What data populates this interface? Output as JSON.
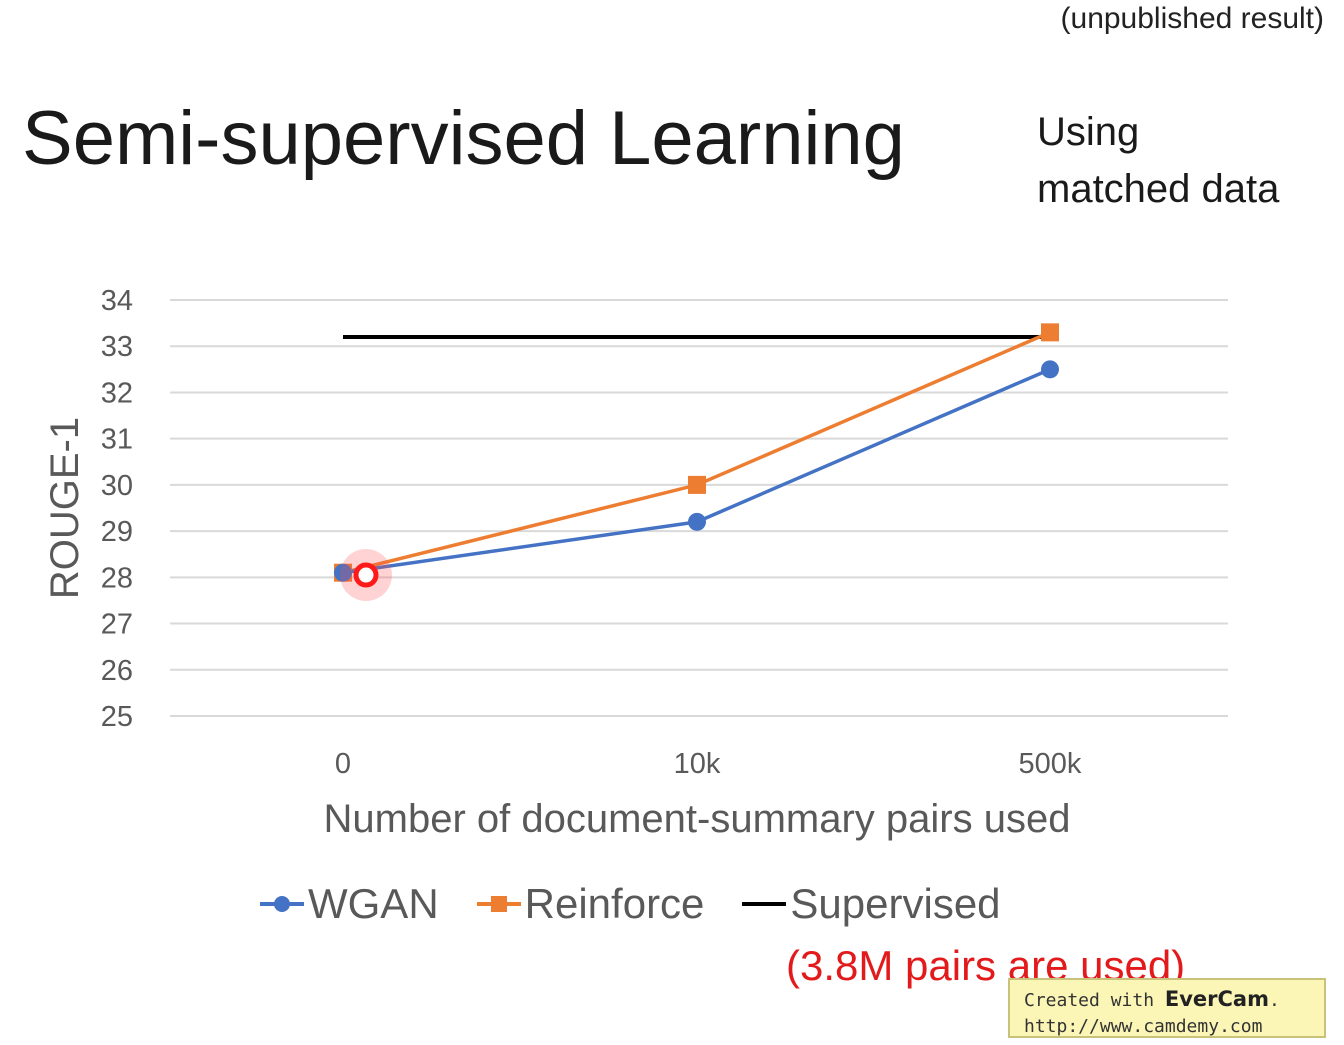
{
  "header": {
    "note": "(unpublished result)",
    "title": "Semi-supervised Learning",
    "side_note_line1": "Using",
    "side_note_line2": "matched data"
  },
  "chart_data": {
    "type": "line",
    "title": "Semi-supervised Learning",
    "xlabel": "Number of document-summary pairs used",
    "ylabel": "ROUGE-1",
    "categories": [
      "0",
      "10k",
      "500k"
    ],
    "ylim": [
      25,
      34
    ],
    "yticks": [
      25,
      26,
      27,
      28,
      29,
      30,
      31,
      32,
      33,
      34
    ],
    "grid": "horizontal",
    "legend": "bottom",
    "series": [
      {
        "name": "WGAN",
        "values": [
          28.1,
          29.2,
          32.5
        ],
        "color": "#4472c4",
        "marker": "circle"
      },
      {
        "name": "Reinforce",
        "values": [
          28.1,
          30.0,
          33.3
        ],
        "color": "#ed7d31",
        "marker": "square"
      },
      {
        "name": "Supervised",
        "values": [
          33.2,
          33.2,
          33.2
        ],
        "color": "#000000",
        "marker": "none"
      }
    ],
    "annotation": "(3.8M pairs are used)",
    "annotation_color": "#e31a1c"
  },
  "watermark": {
    "line1_prefix": "Created with ",
    "brand": "EverCam",
    "line1_suffix": ".",
    "line2": "http://www.camdemy.com"
  }
}
